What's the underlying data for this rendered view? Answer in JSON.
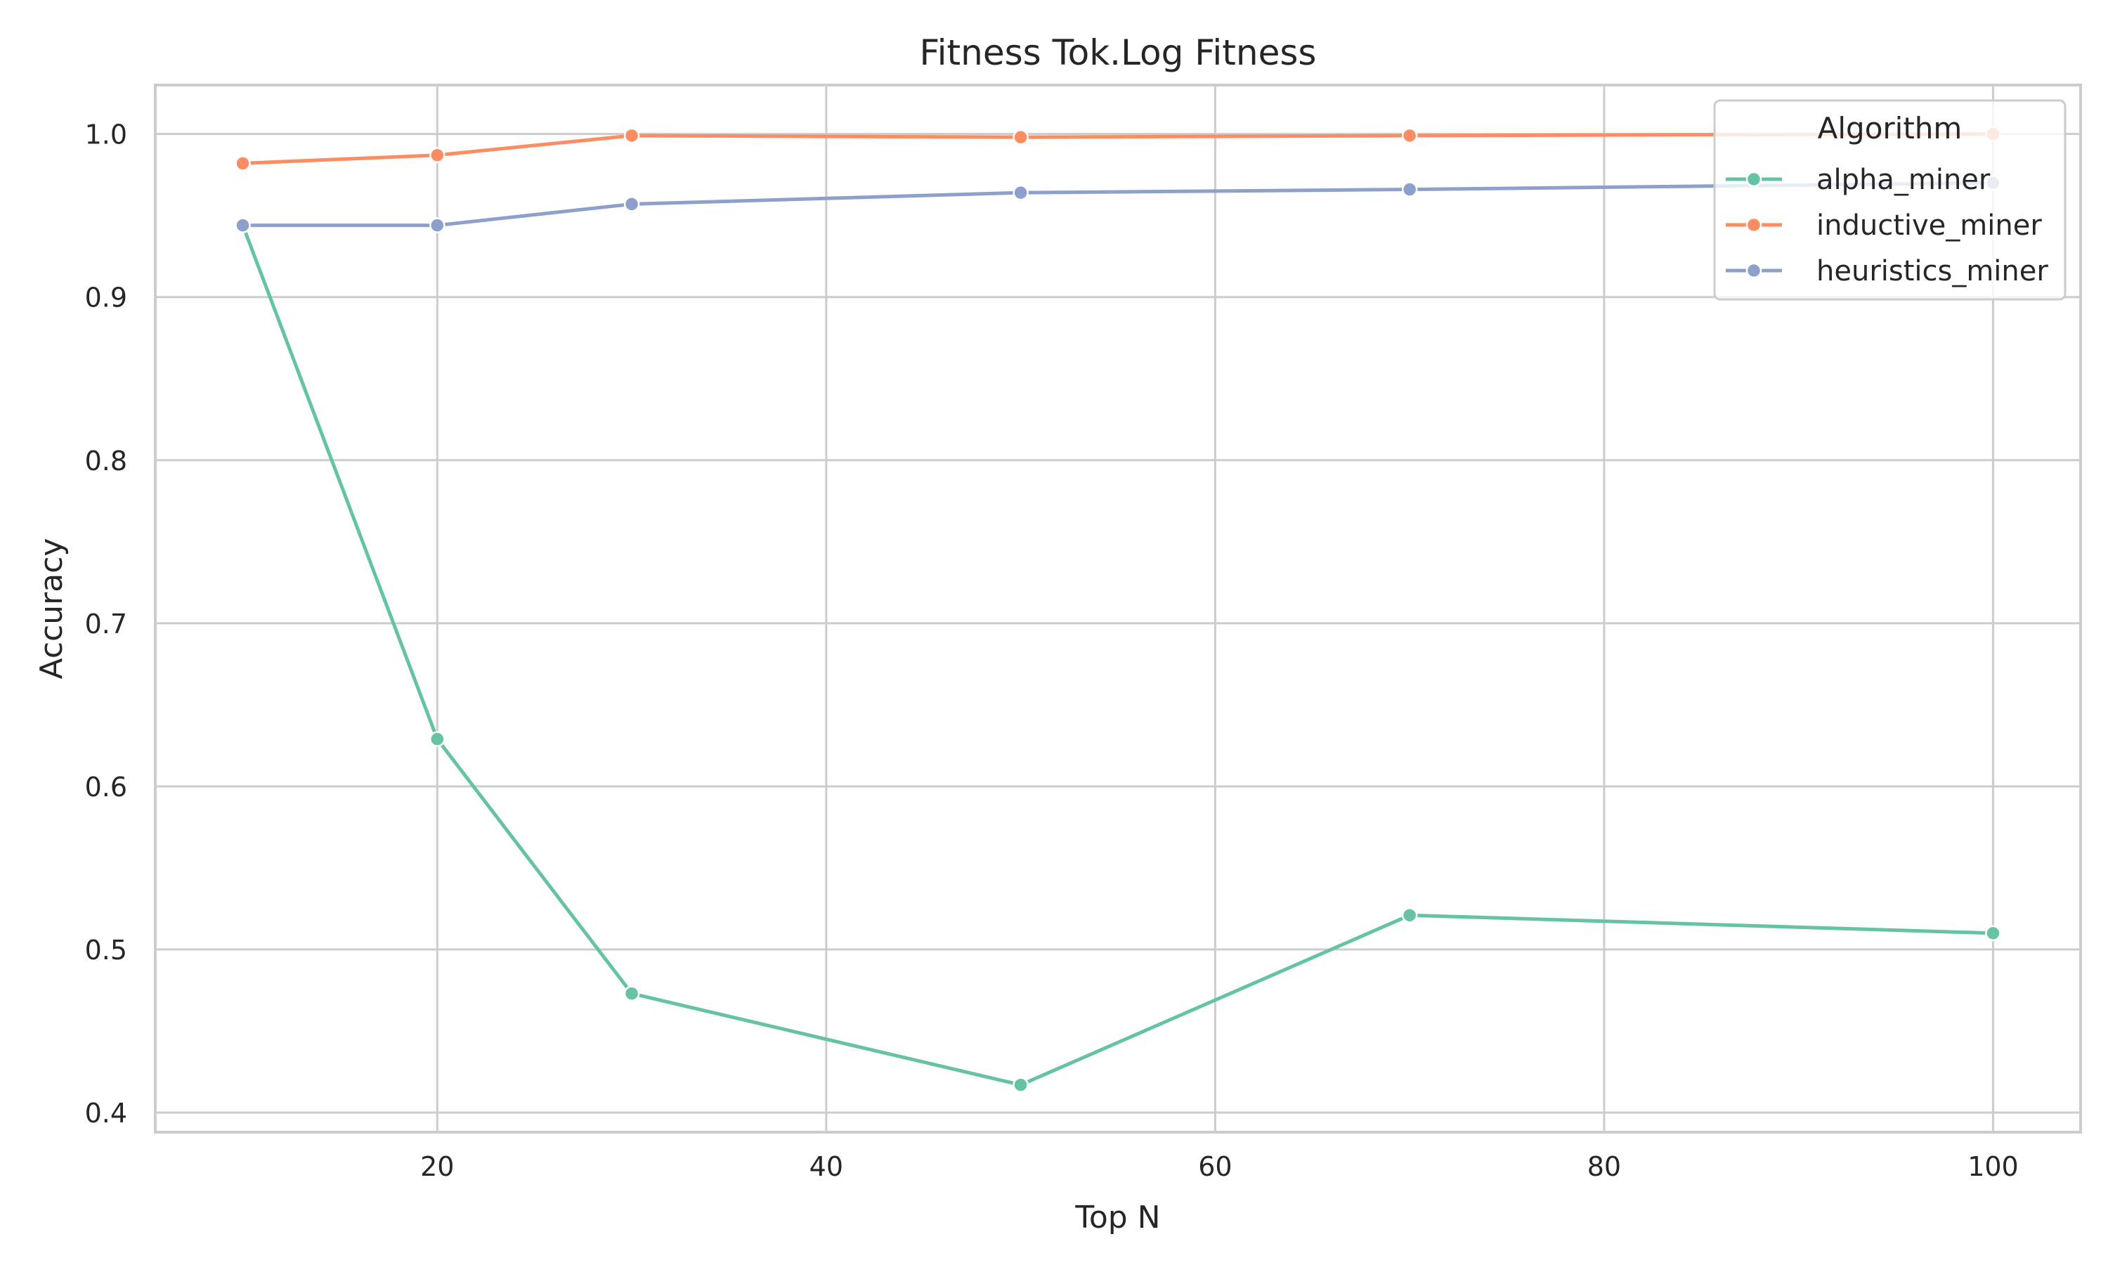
{
  "chart_data": {
    "type": "line",
    "title": "Fitness Tok.Log Fitness",
    "xlabel": "Top N",
    "ylabel": "Accuracy",
    "x": [
      10,
      20,
      30,
      50,
      70,
      100
    ],
    "xlim": [
      5.5,
      104.5
    ],
    "ylim": [
      0.388,
      1.03
    ],
    "xticks": [
      20,
      40,
      60,
      80,
      100
    ],
    "yticks": [
      0.4,
      0.5,
      0.6,
      0.7,
      0.8,
      0.9,
      1.0
    ],
    "yticks_labels": [
      "0.4",
      "0.5",
      "0.6",
      "0.7",
      "0.8",
      "0.9",
      "1.0"
    ],
    "grid": true,
    "legend": {
      "title": "Algorithm",
      "placement": "top-right"
    },
    "series": [
      {
        "name": "alpha_miner",
        "color": "#66c2a5",
        "values": [
          0.944,
          0.629,
          0.473,
          0.417,
          0.521,
          0.51
        ]
      },
      {
        "name": "inductive_miner",
        "color": "#fc8d62",
        "values": [
          0.982,
          0.987,
          0.999,
          0.998,
          0.999,
          1.0
        ]
      },
      {
        "name": "heuristics_miner",
        "color": "#8da0cb",
        "values": [
          0.944,
          0.944,
          0.957,
          0.964,
          0.966,
          0.97
        ]
      }
    ]
  }
}
